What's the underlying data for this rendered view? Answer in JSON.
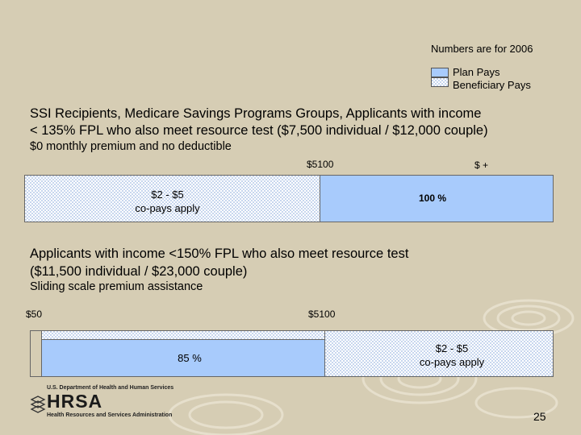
{
  "note": "Numbers are for 2006",
  "legend": {
    "plan_pays": "Plan Pays",
    "beneficiary_pays": "Beneficiary Pays",
    "colors": {
      "plan": "#a8cbfc",
      "beneficiary_pattern": "#c7d6ee"
    }
  },
  "section1": {
    "title_line1": "SSI Recipients, Medicare Savings Programs Groups, Applicants with income",
    "title_line2": "< 135% FPL who also meet resource test ($7,500 individual / $12,000 couple)",
    "subtitle": "$0 monthly premium and no deductible",
    "tick_mid": "$5100",
    "tick_end": "$ +",
    "copay_line1": "$2 - $5",
    "copay_line2": "co-pays apply",
    "plan_percent": "100 %"
  },
  "section2": {
    "title_line1": "Applicants with income <150% FPL who also meet resource test",
    "title_line2": "($11,500 individual / $23,000 couple)",
    "subtitle": "Sliding scale premium assistance",
    "tick_start": "$50",
    "tick_mid": "$5100",
    "plan_percent": "85 %",
    "copay_line1": "$2 - $5",
    "copay_line2": "co-pays apply"
  },
  "footer": {
    "logo_agency": "U.S. Department of Health and Human Services",
    "logo_text": "HRSA",
    "logo_sub": "Health Resources and Services Administration",
    "page_number": "25"
  }
}
